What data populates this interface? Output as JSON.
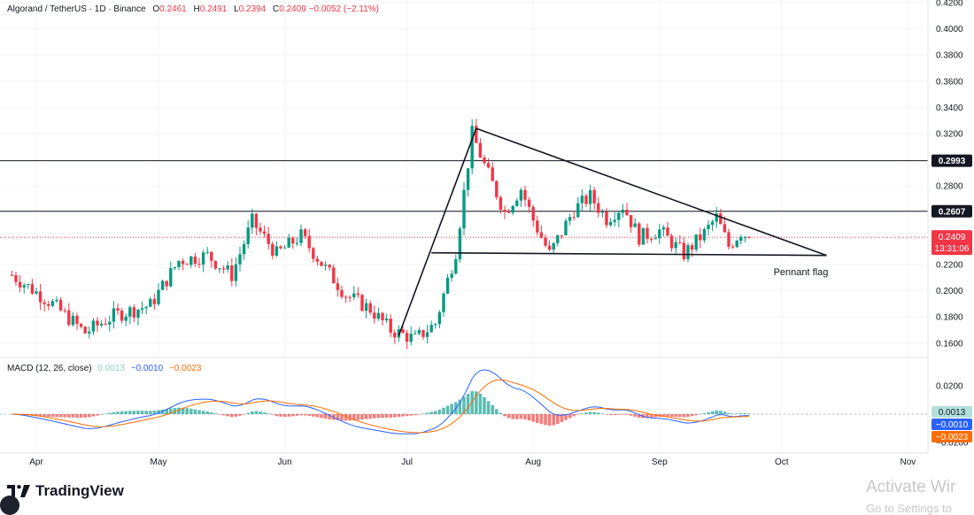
{
  "header": {
    "symbol": "Algorand / TetherUS · 1D · Binance",
    "o_label": "O",
    "o_value": "0.2461",
    "h_label": "H",
    "h_value": "0.2491",
    "l_label": "L",
    "l_value": "0.2394",
    "c_label": "C",
    "c_value": "0.2409",
    "change": "−0.0052 (−2.11%)"
  },
  "macd_legend": {
    "label": "MACD (12, 26, close)",
    "hist": "0.0013",
    "macd": "−0.0010",
    "signal": "−0.0023"
  },
  "brand": "TradingView",
  "watermark": {
    "line1": "Activate Wir",
    "line2": "Go to Settings to"
  },
  "colors": {
    "up": "#089981",
    "down": "#f23645",
    "macd_line": "#2962ff",
    "signal_line": "#ff6d00",
    "hist_up": "#26a69a",
    "hist_down": "#ef5350"
  },
  "chart_data": {
    "type": "candlestick",
    "x_axis": {
      "labels": [
        "Apr",
        "May",
        "Jun",
        "Jul",
        "Aug",
        "Sep",
        "Oct",
        "Nov"
      ]
    },
    "y_axis": {
      "ticks": [
        "0.4200",
        "0.4000",
        "0.3800",
        "0.3600",
        "0.3400",
        "0.3200",
        "0.3000",
        "0.2800",
        "0.2600",
        "0.2400",
        "0.2200",
        "0.2000",
        "0.1800",
        "0.1600"
      ],
      "range": [
        0.147,
        0.42
      ]
    },
    "price_lines": [
      {
        "value": 0.2993,
        "label": "0.2993"
      },
      {
        "value": 0.2607,
        "label": "0.2607"
      }
    ],
    "current_price": {
      "value": 0.2409,
      "label": "0.2409",
      "countdown": "13:31:06"
    },
    "annotation": {
      "text": "Pennant flag"
    },
    "pattern_lines": [
      {
        "from": [
          "2024-06-29",
          0.166
        ],
        "to": [
          "2024-07-18",
          0.324
        ]
      },
      {
        "from": [
          "2024-07-18",
          0.324
        ],
        "to": [
          "2024-10-12",
          0.227
        ]
      },
      {
        "from": [
          "2024-07-07",
          0.229
        ],
        "to": [
          "2024-10-12",
          0.227
        ]
      }
    ],
    "price_path": [
      [
        "2024-03-26",
        0.212
      ],
      [
        "2024-04-05",
        0.19
      ],
      [
        "2024-04-13",
        0.168
      ],
      [
        "2024-04-20",
        0.181
      ],
      [
        "2024-04-29",
        0.189
      ],
      [
        "2024-05-06",
        0.223
      ],
      [
        "2024-05-13",
        0.227
      ],
      [
        "2024-05-19",
        0.212
      ],
      [
        "2024-05-24",
        0.253
      ],
      [
        "2024-05-30",
        0.228
      ],
      [
        "2024-06-05",
        0.242
      ],
      [
        "2024-06-10",
        0.221
      ],
      [
        "2024-06-16",
        0.197
      ],
      [
        "2024-06-22",
        0.186
      ],
      [
        "2024-06-27",
        0.17
      ],
      [
        "2024-07-03",
        0.163
      ],
      [
        "2024-07-08",
        0.175
      ],
      [
        "2024-07-13",
        0.23
      ],
      [
        "2024-07-17",
        0.32
      ],
      [
        "2024-07-20",
        0.296
      ],
      [
        "2024-07-25",
        0.26
      ],
      [
        "2024-07-29",
        0.278
      ],
      [
        "2024-08-01",
        0.254
      ],
      [
        "2024-08-05",
        0.228
      ],
      [
        "2024-08-11",
        0.262
      ],
      [
        "2024-08-15",
        0.272
      ],
      [
        "2024-08-19",
        0.255
      ],
      [
        "2024-08-23",
        0.265
      ],
      [
        "2024-08-27",
        0.241
      ],
      [
        "2024-09-01",
        0.246
      ],
      [
        "2024-09-07",
        0.228
      ],
      [
        "2024-09-12",
        0.244
      ],
      [
        "2024-09-15",
        0.256
      ],
      [
        "2024-09-18",
        0.234
      ],
      [
        "2024-09-21",
        0.245
      ],
      [
        "2024-09-23",
        0.241
      ]
    ],
    "macd": {
      "y_ticks": [
        "0.0200",
        "−0.0200"
      ],
      "values": {
        "histogram": 0.0013,
        "macd": -0.001,
        "signal": -0.0023
      }
    }
  }
}
